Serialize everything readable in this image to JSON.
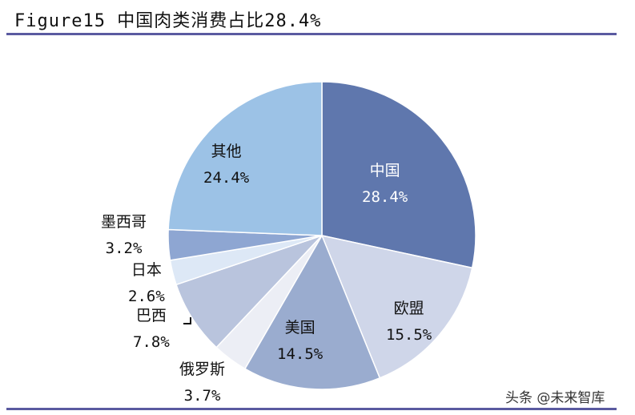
{
  "title": "Figure15 中国肉类消费占比28.4%",
  "watermark": "头条 @未来智库",
  "chart_data": {
    "type": "pie",
    "title": "Figure15 中国肉类消费占比28.4%",
    "start_angle_deg": 0,
    "direction": "clockwise",
    "categories": [
      "中国",
      "欧盟",
      "美国",
      "俄罗斯",
      "巴西",
      "日本",
      "墨西哥",
      "其他"
    ],
    "values": [
      28.4,
      15.5,
      14.5,
      3.7,
      7.8,
      2.6,
      3.2,
      24.4
    ],
    "unit": "%",
    "colors": [
      "#5f77ad",
      "#cfd6e9",
      "#9aaccf",
      "#eceef5",
      "#b9c4dd",
      "#dde8f6",
      "#8ea6d2",
      "#9cc2e6"
    ],
    "labels": [
      {
        "name": "中国",
        "pct": "28.4%"
      },
      {
        "name": "欧盟",
        "pct": "15.5%"
      },
      {
        "name": "美国",
        "pct": "14.5%"
      },
      {
        "name": "俄罗斯",
        "pct": "3.7%"
      },
      {
        "name": "巴西",
        "pct": "7.8%"
      },
      {
        "name": "日本",
        "pct": "2.6%"
      },
      {
        "name": "墨西哥",
        "pct": "3.2%"
      },
      {
        "name": "其他",
        "pct": "24.4%"
      }
    ]
  }
}
